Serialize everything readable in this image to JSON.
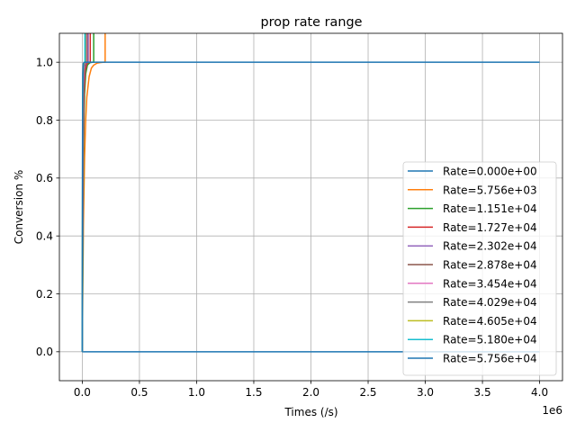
{
  "chart_data": {
    "type": "line",
    "title": "prop rate range",
    "xlabel": "Times (/s)",
    "ylabel": "Conversion %",
    "x_offset_text": "1e6",
    "xlim": [
      -200000,
      4200000
    ],
    "ylim": [
      -0.1,
      1.1
    ],
    "x_ticks": [
      0,
      500000,
      1000000,
      1500000,
      2000000,
      2500000,
      3000000,
      3500000,
      4000000
    ],
    "x_tick_labels": [
      "0.0",
      "0.5",
      "1.0",
      "1.5",
      "2.0",
      "2.5",
      "3.0",
      "3.5",
      "4.0"
    ],
    "y_ticks": [
      0.0,
      0.2,
      0.4,
      0.6,
      0.8,
      1.0
    ],
    "y_tick_labels": [
      "0.0",
      "0.2",
      "0.4",
      "0.6",
      "0.8",
      "1.0"
    ],
    "grid": true,
    "legend_position": "lower-right",
    "series": [
      {
        "name": "Rate=0.000e+00",
        "color": "#1f77b4",
        "x": [
          0,
          4000000
        ],
        "y": [
          0.0,
          0.0
        ]
      },
      {
        "name": "Rate=5.756e+03",
        "color": "#ff7f0e",
        "x": [
          0,
          10000,
          20000,
          30000,
          40000,
          60000,
          80000,
          100000,
          130000,
          160000,
          190000,
          200000,
          200000
        ],
        "y": [
          0.0,
          0.44,
          0.67,
          0.8,
          0.88,
          0.95,
          0.98,
          0.99,
          0.997,
          0.999,
          1.0,
          1.0,
          1.1
        ]
      },
      {
        "name": "Rate=1.151e+04",
        "color": "#2ca02c",
        "x": [
          0,
          10000,
          20000,
          30000,
          45000,
          65000,
          90000,
          100000,
          100000
        ],
        "y": [
          0.0,
          0.68,
          0.89,
          0.96,
          0.99,
          0.998,
          1.0,
          1.0,
          1.1
        ]
      },
      {
        "name": "Rate=1.727e+04",
        "color": "#d62728",
        "x": [
          0,
          8000,
          16000,
          25000,
          40000,
          60000,
          70000,
          70000
        ],
        "y": [
          0.0,
          0.7,
          0.9,
          0.97,
          0.995,
          1.0,
          1.0,
          1.1
        ]
      },
      {
        "name": "Rate=2.302e+04",
        "color": "#9467bd",
        "x": [
          0,
          6000,
          12000,
          20000,
          32000,
          45000,
          52000,
          52000
        ],
        "y": [
          0.0,
          0.72,
          0.92,
          0.98,
          0.997,
          1.0,
          1.0,
          1.1
        ]
      },
      {
        "name": "Rate=2.878e+04",
        "color": "#8c564b",
        "x": [
          0,
          5000,
          10000,
          17000,
          28000,
          38000,
          42000,
          42000
        ],
        "y": [
          0.0,
          0.74,
          0.93,
          0.985,
          0.998,
          1.0,
          1.0,
          1.1
        ]
      },
      {
        "name": "Rate=3.454e+04",
        "color": "#e377c2",
        "x": [
          0,
          4000,
          8000,
          14000,
          24000,
          32000,
          35000,
          35000
        ],
        "y": [
          0.0,
          0.75,
          0.94,
          0.99,
          0.999,
          1.0,
          1.0,
          1.1
        ]
      },
      {
        "name": "Rate=4.029e+04",
        "color": "#7f7f7f",
        "x": [
          0,
          3500,
          7000,
          12000,
          20000,
          28000,
          30000,
          30000
        ],
        "y": [
          0.0,
          0.76,
          0.95,
          0.99,
          0.999,
          1.0,
          1.0,
          1.1
        ]
      },
      {
        "name": "Rate=4.605e+04",
        "color": "#bcbd22",
        "x": [
          0,
          3000,
          6000,
          11000,
          18000,
          25000,
          26000,
          26000
        ],
        "y": [
          0.0,
          0.77,
          0.95,
          0.99,
          0.999,
          1.0,
          1.0,
          1.1
        ]
      },
      {
        "name": "Rate=5.180e+04",
        "color": "#17becf",
        "x": [
          0,
          2700,
          5500,
          10000,
          16000,
          22000,
          23000,
          23000
        ],
        "y": [
          0.0,
          0.78,
          0.96,
          0.995,
          0.999,
          1.0,
          1.0,
          1.1
        ]
      },
      {
        "name": "Rate=5.756e+04",
        "color": "#1f77b4",
        "x": [
          0,
          2500,
          5000,
          9000,
          15000,
          20000,
          60000,
          4000000
        ],
        "y": [
          0.0,
          0.78,
          0.96,
          0.995,
          0.999,
          1.0,
          1.0,
          1.0
        ]
      }
    ]
  }
}
